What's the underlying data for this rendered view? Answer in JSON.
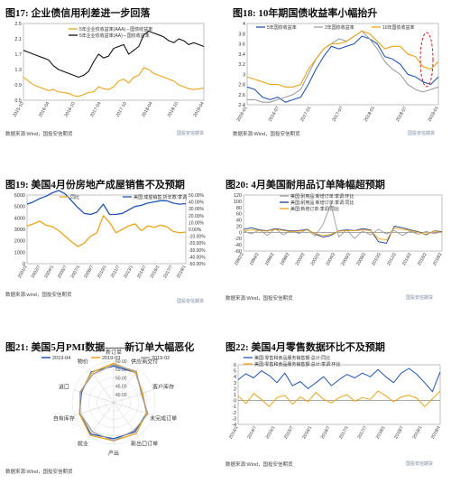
{
  "colors": {
    "black": "#111111",
    "orange": "#f0a317",
    "grey": "#9e9e9e",
    "blue": "#2255b8",
    "red": "#d71920",
    "navy": "#1d3f8f"
  },
  "panels": {
    "p17": {
      "title": "图17:  企业债信用利差进一步回落",
      "source": "数据来源:Wind，国投安信期货",
      "logo": "国投安信期货"
    },
    "p18": {
      "title": "图18:  10年期国债收益率小幅抬升",
      "source": "数据来源:Wind，国投安信期货",
      "logo": "国投安信期货"
    },
    "p19": {
      "title": "图19:  美国4月份房地产成屋销售不及预期",
      "source": "数据来源:wind，国投安信期货",
      "logo": "国投安信期货"
    },
    "p20": {
      "title": "图20:  4月美国耐用品订单降幅超预期",
      "source": "数据来源:Wind，国投安信期货",
      "logo": "国投安信期货"
    },
    "p21": {
      "title": "图21:  美国5月PMI数据——新订单大幅恶化",
      "source": "数据来源:Wind，国投安信期货"
    },
    "p22": {
      "title": "图22:  美国4月零售数据环比不及预期",
      "source": "数据来源:Wind，国投安信期货",
      "logo": "国投安信期货"
    }
  },
  "chart_data": [
    {
      "id": "p17",
      "type": "line",
      "ylim": [
        0.5,
        2.5
      ],
      "yticks": [
        "2.5",
        "2.1",
        "1.7",
        "1.3",
        "0.9",
        "0.5"
      ],
      "xticks": [
        "2015-10",
        "2016-04",
        "2016-10",
        "2017-04",
        "2017-10",
        "2018-04",
        "2018-10",
        "2019-04"
      ],
      "series": [
        {
          "name": "5年企业债收益率(AAA)－国债收益率",
          "color": "orange",
          "values": [
            1.1,
            1.0,
            0.9,
            0.85,
            0.8,
            0.75,
            0.78,
            0.72,
            0.7,
            0.68,
            0.62,
            0.6,
            0.65,
            0.7,
            0.72,
            0.85,
            0.8,
            0.78,
            0.85,
            1.0,
            1.05,
            0.95,
            1.1,
            1.15,
            1.35,
            1.3,
            1.2,
            1.15,
            1.1,
            1.05,
            1.0,
            0.9,
            0.85,
            0.8,
            0.78,
            0.8,
            0.82
          ]
        },
        {
          "name": "5年企业债收益率(AA)－国债收益率",
          "color": "black",
          "values": [
            1.8,
            1.75,
            1.7,
            1.65,
            1.6,
            1.55,
            1.4,
            1.3,
            1.25,
            1.2,
            1.15,
            1.1,
            1.15,
            1.25,
            1.5,
            1.7,
            1.6,
            1.65,
            1.85,
            1.9,
            1.95,
            1.7,
            1.8,
            1.9,
            2.2,
            2.3,
            2.25,
            2.2,
            2.15,
            2.05,
            2.0,
            2.1,
            2.05,
            1.95,
            2.0,
            1.95,
            1.9
          ]
        }
      ]
    },
    {
      "id": "p18",
      "type": "line",
      "ylim": [
        2.4,
        4.0
      ],
      "yticks": [
        "4",
        "3.8",
        "3.6",
        "3.4",
        "3.2",
        "3",
        "2.8",
        "2.6",
        "2.4"
      ],
      "xticks": [
        "2016-01",
        "2016-07",
        "2017-01",
        "2017-07",
        "2018-01",
        "2018-07",
        "2019-01"
      ],
      "series": [
        {
          "name": "5年国债收益率",
          "color": "blue",
          "values": [
            2.75,
            2.7,
            2.55,
            2.5,
            2.55,
            2.45,
            2.5,
            2.55,
            2.8,
            3.1,
            3.35,
            3.55,
            3.5,
            3.55,
            3.6,
            3.75,
            3.7,
            3.6,
            3.35,
            3.3,
            3.2,
            3.0,
            2.95,
            2.85,
            2.8,
            2.95
          ]
        },
        {
          "name": "2年国债收益率",
          "color": "grey",
          "values": [
            2.5,
            2.5,
            2.45,
            2.45,
            2.5,
            2.55,
            2.6,
            2.7,
            3.0,
            3.3,
            3.5,
            3.6,
            3.7,
            3.65,
            3.75,
            3.85,
            3.7,
            3.5,
            3.25,
            3.1,
            3.0,
            2.8,
            2.7,
            2.65,
            2.7,
            2.75
          ]
        },
        {
          "name": "10年国债收益率",
          "color": "orange",
          "values": [
            2.95,
            2.9,
            2.85,
            2.8,
            2.8,
            2.75,
            2.75,
            2.8,
            3.1,
            3.3,
            3.5,
            3.6,
            3.6,
            3.65,
            3.75,
            3.85,
            3.8,
            3.65,
            3.5,
            3.55,
            3.55,
            3.4,
            3.35,
            3.15,
            3.1,
            3.25
          ]
        }
      ]
    },
    {
      "id": "p19",
      "type": "line",
      "ylim_left": [
        0,
        6000
      ],
      "yticks_left": [
        "6000",
        "5000",
        "4000",
        "3000",
        "2000",
        "1000",
        "0"
      ],
      "ylim_right": [
        -50,
        50
      ],
      "yticks_right": [
        "50.00%",
        "40.00%",
        "30.00%",
        "20.00%",
        "10.00%",
        "0.00%",
        "-10.00%",
        "-20.00%",
        "-30.00%",
        "-40.00%",
        "-50.00%"
      ],
      "xticks": [
        "2001/1",
        "2002/7",
        "2004/1",
        "2005/7",
        "2007/1",
        "2008/7",
        "2010/1",
        "2011/7",
        "2013/1",
        "2014/7",
        "2016/1",
        "2017/7",
        "2019/1"
      ],
      "series": [
        {
          "name": "同比",
          "axis": "right",
          "color": "orange",
          "values": [
            5,
            8,
            12,
            6,
            4,
            -2,
            -10,
            -18,
            -25,
            -20,
            -10,
            -5,
            20,
            10,
            -5,
            0,
            5,
            8,
            -2,
            5,
            3,
            6,
            4,
            -3,
            -5,
            -4
          ]
        },
        {
          "name": "美国:成屋销售:折年数:季调",
          "axis": "left",
          "color": "blue",
          "values": [
            5200,
            5400,
            5700,
            5900,
            6200,
            6400,
            6100,
            5500,
            4900,
            4400,
            4300,
            4500,
            5200,
            4300,
            4300,
            4400,
            4700,
            5000,
            5100,
            5300,
            5400,
            5500,
            5500,
            5300,
            5200,
            5250
          ]
        }
      ]
    },
    {
      "id": "p20",
      "type": "line",
      "ylim": [
        -60,
        120
      ],
      "yticks": [
        "120",
        "100",
        "80",
        "60",
        "40",
        "20",
        "0",
        "-20",
        "-40",
        "-60"
      ],
      "xticks": [
        "1992/2",
        "1994/2",
        "1996/2",
        "1998/2",
        "2000/2",
        "2002/2",
        "2004/2",
        "2006/2",
        "2008/2",
        "2010/2",
        "2012/2",
        "2014/2",
        "2016/2",
        "2018/2"
      ],
      "series": [
        {
          "name": "美国:耐用品:新增订单:季调:环比",
          "color": "grey",
          "values": [
            5,
            -5,
            8,
            -10,
            12,
            -8,
            6,
            -4,
            10,
            -12,
            25,
            90,
            -15,
            8,
            -20,
            5,
            -8,
            10,
            -5,
            6,
            -10,
            4,
            -6,
            3,
            -4,
            2
          ]
        },
        {
          "name": "美国:耐用品:新增订单:季调:同比",
          "color": "navy",
          "values": [
            10,
            15,
            8,
            5,
            12,
            8,
            4,
            6,
            10,
            -5,
            -15,
            -10,
            5,
            8,
            6,
            12,
            8,
            -30,
            -35,
            20,
            15,
            8,
            2,
            -8,
            5,
            2
          ]
        },
        {
          "name": "美国:新增订单:季调:同比",
          "color": "orange",
          "values": [
            5,
            8,
            6,
            4,
            10,
            6,
            2,
            4,
            8,
            -4,
            -10,
            -6,
            4,
            6,
            5,
            8,
            6,
            -20,
            -25,
            15,
            10,
            6,
            0,
            -6,
            4,
            0
          ]
        }
      ]
    },
    {
      "id": "p21",
      "type": "radar",
      "ylim": [
        0,
        60
      ],
      "ring_labels": [
        "60.00",
        "55.00",
        "50.00",
        "45.00",
        "40.00"
      ],
      "axes": [
        "新订单",
        "供应商交付",
        "客户库存",
        "未完成订单",
        "新出口订单",
        "产出",
        "就业",
        "自有库存",
        "进口",
        "物价"
      ],
      "series": [
        {
          "name": "2019-04",
          "color": "blue",
          "values": [
            53,
            54,
            44,
            50,
            52,
            52,
            56,
            52,
            49,
            55
          ]
        },
        {
          "name": "2019-03",
          "color": "orange",
          "values": [
            57,
            54,
            44,
            50,
            55,
            55,
            58,
            52,
            50,
            54
          ]
        },
        {
          "name": "2019-02",
          "color": "grey",
          "values": [
            55,
            56,
            42,
            52,
            50,
            55,
            52,
            51,
            51,
            51
          ]
        }
      ]
    },
    {
      "id": "p22",
      "type": "line",
      "ylim": [
        -4,
        6
      ],
      "yticks": [
        "6",
        "5",
        "4",
        "3",
        "2",
        "1",
        "0",
        "-1",
        "-2",
        "-3",
        "-4"
      ],
      "xticks": [
        "2014/1",
        "2014/7",
        "2015/1",
        "2015/7",
        "2016/1",
        "2016/7",
        "2017/1",
        "2017/7",
        "2018/1",
        "2018/7",
        "2019/1",
        "2019/4"
      ],
      "series": [
        {
          "name": "美国:零售和食品服务销售额:总计:同比",
          "color": "blue",
          "values": [
            3.5,
            4.5,
            3.8,
            5.0,
            4.2,
            3.0,
            4.6,
            2.5,
            3.2,
            2.0,
            3.0,
            4.0,
            2.5,
            3.5,
            4.4,
            3.8,
            4.6,
            4.0,
            5.2,
            4.0,
            3.0,
            4.6,
            5.4,
            4.4,
            3.0,
            1.5,
            4.8
          ]
        },
        {
          "name": "美国:零售和食品服务销售额:总计:季调:环比",
          "color": "orange",
          "values": [
            0.8,
            -0.5,
            1.2,
            0.2,
            -1.0,
            0.5,
            0.9,
            -0.6,
            0.6,
            -0.2,
            1.4,
            0.2,
            -0.4,
            0.5,
            1.0,
            -0.1,
            0.5,
            0.2,
            1.6,
            0.8,
            -0.2,
            0.6,
            0.9,
            0.4,
            -1.0,
            0.3,
            1.6
          ]
        }
      ]
    }
  ]
}
